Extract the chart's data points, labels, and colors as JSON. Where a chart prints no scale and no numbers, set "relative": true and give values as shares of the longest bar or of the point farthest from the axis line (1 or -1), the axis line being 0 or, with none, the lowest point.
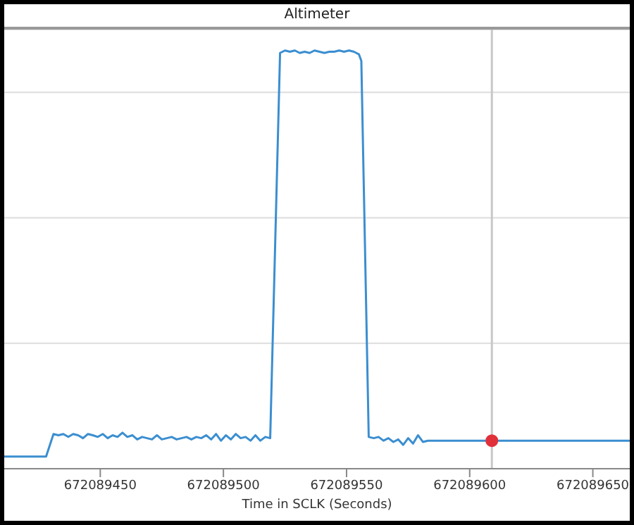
{
  "chart_data": {
    "type": "line",
    "title": "Altimeter",
    "xlabel": "Time in SCLK (Seconds)",
    "relative": true,
    "xlim": [
      672089411,
      672089665
    ],
    "xticks": [
      672089450,
      672089500,
      672089550,
      672089600,
      672089650
    ],
    "grid": "y",
    "marker": "none",
    "line_style": "solid",
    "ref_lines": [
      {
        "axis": "x",
        "value": 672089609,
        "color": "#c8c8c8"
      }
    ],
    "series": [
      {
        "color": "#3b8ed0",
        "x": [
          672089411,
          672089428,
          672089431,
          672089433,
          672089435,
          672089437,
          672089439,
          672089441,
          672089443,
          672089445,
          672089447,
          672089449,
          672089451,
          672089453,
          672089455,
          672089457,
          672089459,
          672089461,
          672089463,
          672089465,
          672089467,
          672089469,
          672089471,
          672089473,
          672089475,
          672089477,
          672089479,
          672089481,
          672089483,
          672089485,
          672089487,
          672089489,
          672089491,
          672089493,
          672089495,
          672089497,
          672089499,
          672089501,
          672089503,
          672089505,
          672089507,
          672089509,
          672089511,
          672089513,
          672089515,
          672089517,
          672089519,
          672089523,
          672089525,
          672089527,
          672089529,
          672089531,
          672089533,
          672089535,
          672089537,
          672089539,
          672089541,
          672089543,
          672089545,
          672089547,
          672089549,
          672089551,
          672089553,
          672089555,
          672089556,
          672089559,
          672089561,
          672089563,
          672089565,
          672089567,
          672089569,
          672089571,
          672089573,
          672089575,
          672089577,
          672089579,
          672089581,
          672089583,
          672089665
        ],
        "values": [
          0.029,
          0.029,
          0.083,
          0.08,
          0.083,
          0.076,
          0.083,
          0.08,
          0.073,
          0.083,
          0.08,
          0.076,
          0.083,
          0.073,
          0.08,
          0.076,
          0.086,
          0.076,
          0.08,
          0.07,
          0.076,
          0.073,
          0.07,
          0.08,
          0.07,
          0.073,
          0.076,
          0.07,
          0.073,
          0.076,
          0.07,
          0.076,
          0.073,
          0.08,
          0.07,
          0.083,
          0.067,
          0.08,
          0.07,
          0.083,
          0.073,
          0.076,
          0.067,
          0.08,
          0.067,
          0.076,
          0.073,
          0.994,
          1,
          0.997,
          1,
          0.994,
          0.997,
          0.994,
          1,
          0.997,
          0.994,
          0.997,
          0.997,
          1,
          0.997,
          1,
          0.997,
          0.991,
          0.975,
          0.076,
          0.073,
          0.076,
          0.067,
          0.073,
          0.064,
          0.07,
          0.057,
          0.073,
          0.06,
          0.08,
          0.064,
          0.067,
          0.067
        ]
      },
      {
        "type": "scatter",
        "color": "#e0303a",
        "marker": "circle",
        "x": [
          672089609
        ],
        "values": [
          0.067
        ]
      }
    ]
  }
}
